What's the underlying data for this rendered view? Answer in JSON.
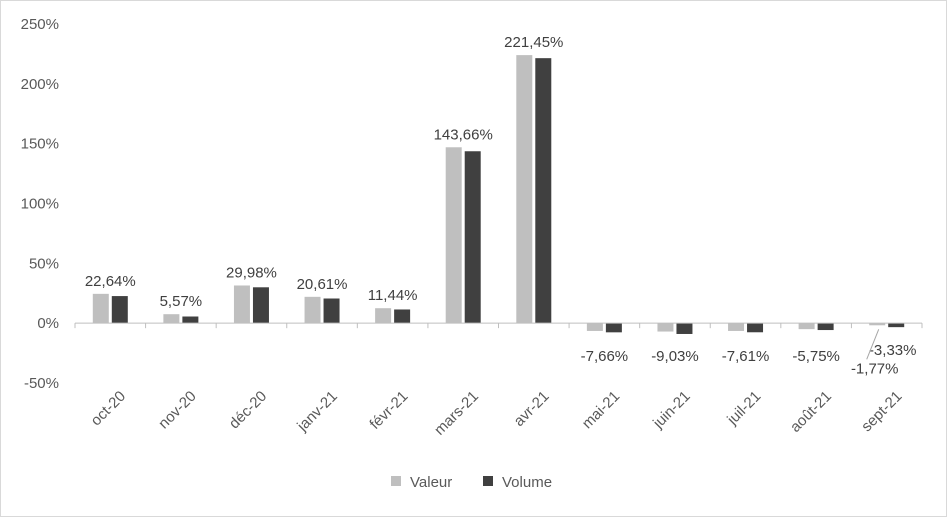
{
  "chart_data": {
    "type": "bar",
    "categories": [
      "oct-20",
      "nov-20",
      "déc-20",
      "janv-21",
      "févr-21",
      "mars-21",
      "avr-21",
      "mai-21",
      "juin-21",
      "juil-21",
      "août-21",
      "sept-21"
    ],
    "series": [
      {
        "name": "Valeur",
        "color": "#bfbfbf",
        "values": [
          24.5,
          7.5,
          31.5,
          22.0,
          12.5,
          147.0,
          224.0,
          -6.5,
          -7.0,
          -6.5,
          -5.0,
          -1.77
        ]
      },
      {
        "name": "Volume",
        "color": "#404040",
        "values": [
          22.64,
          5.57,
          29.98,
          20.61,
          11.44,
          143.66,
          221.45,
          -7.66,
          -9.03,
          -7.61,
          -5.75,
          -3.33
        ]
      }
    ],
    "data_labels": [
      {
        "category": "oct-20",
        "series": "Volume",
        "text": "22,64%"
      },
      {
        "category": "nov-20",
        "series": "Volume",
        "text": "5,57%"
      },
      {
        "category": "déc-20",
        "series": "Volume",
        "text": "29,98%"
      },
      {
        "category": "janv-21",
        "series": "Volume",
        "text": "20,61%"
      },
      {
        "category": "févr-21",
        "series": "Volume",
        "text": "11,44%"
      },
      {
        "category": "mars-21",
        "series": "Volume",
        "text": "143,66%"
      },
      {
        "category": "avr-21",
        "series": "Volume",
        "text": "221,45%"
      },
      {
        "category": "mai-21",
        "series": "Volume",
        "text": "-7,66%"
      },
      {
        "category": "juin-21",
        "series": "Volume",
        "text": "-9,03%"
      },
      {
        "category": "juil-21",
        "series": "Volume",
        "text": "-7,61%"
      },
      {
        "category": "août-21",
        "series": "Volume",
        "text": "-5,75%"
      },
      {
        "category": "sept-21",
        "series": "Volume",
        "text": "-3,33%"
      },
      {
        "category": "sept-21",
        "series": "Valeur",
        "text": "-1,77%"
      }
    ],
    "y_ticks": [
      {
        "value": 250,
        "label": "250%"
      },
      {
        "value": 200,
        "label": "200%"
      },
      {
        "value": 150,
        "label": "150%"
      },
      {
        "value": 100,
        "label": "100%"
      },
      {
        "value": 50,
        "label": "50%"
      },
      {
        "value": 0,
        "label": "0%"
      },
      {
        "value": -50,
        "label": "-50%"
      }
    ],
    "ylim": [
      -50,
      250
    ],
    "grid": false,
    "legend_position": "bottom",
    "xlabel": "",
    "ylabel": "",
    "title": ""
  }
}
